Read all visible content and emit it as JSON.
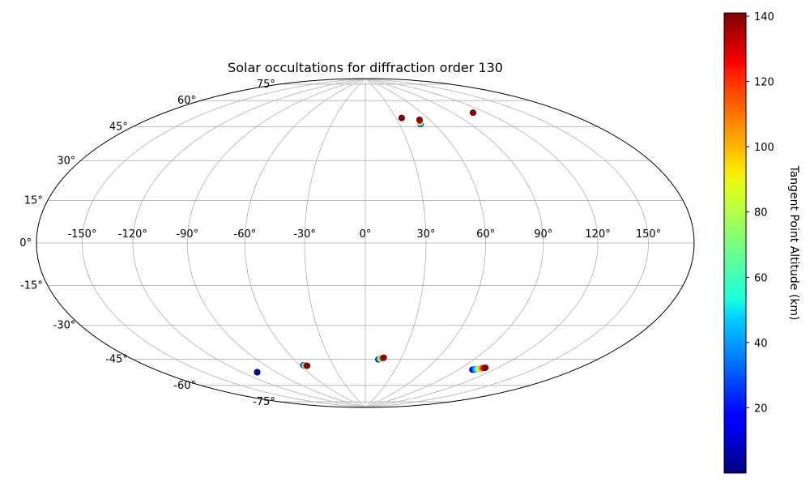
{
  "chart_data": {
    "type": "scatter",
    "projection": "hammer",
    "title": "Solar occultations for diffraction order 130",
    "longitude_ticks": [
      -150,
      -120,
      -90,
      -60,
      -30,
      0,
      30,
      60,
      90,
      120,
      150
    ],
    "longitude_tick_labels": [
      "-150°",
      "-120°",
      "-90°",
      "-60°",
      "-30°",
      "0°",
      "30°",
      "60°",
      "90°",
      "120°",
      "150°"
    ],
    "latitude_ticks": [
      -75,
      -60,
      -45,
      -30,
      -15,
      0,
      15,
      30,
      45,
      60,
      75
    ],
    "latitude_tick_labels": [
      "-75°",
      "-60°",
      "-45°",
      "-30°",
      "-15°",
      "0°",
      "15°",
      "30°",
      "45°",
      "60°",
      "75°"
    ],
    "grid": true,
    "colorbar": {
      "label": "Tangent Point Altitude (km)",
      "colormap": "jet",
      "range": [
        0,
        141
      ],
      "ticks": [
        20,
        40,
        60,
        80,
        100,
        120,
        140
      ],
      "tick_labels": [
        "20",
        "40",
        "60",
        "80",
        "100",
        "120",
        "140"
      ],
      "position": "right"
    },
    "occultations": [
      {
        "lon_start": 35.5,
        "lon_end": 35.5,
        "lat_start": 64.5,
        "lat_end": 64.5,
        "alt_min": 140,
        "alt_max": 141
      },
      {
        "lon_start": 48.5,
        "lon_end": 51.0,
        "lat_start": 60.5,
        "lat_end": 63.0,
        "alt_min": 10,
        "alt_max": 140
      },
      {
        "lon_start": 108.5,
        "lon_end": 108.5,
        "lat_start": 63.0,
        "lat_end": 63.0,
        "alt_min": 140,
        "alt_max": 141
      },
      {
        "lon_start": -107.0,
        "lon_end": -107.0,
        "lat_start": -62.5,
        "lat_end": -62.5,
        "alt_min": 1,
        "alt_max": 2
      },
      {
        "lon_start": -57.0,
        "lon_end": -54.0,
        "lat_start": -62.0,
        "lat_end": -62.5,
        "alt_min": 1,
        "alt_max": 141
      },
      {
        "lon_start": 11.0,
        "lon_end": 15.5,
        "lat_start": -60.0,
        "lat_end": -59.0,
        "alt_min": 1,
        "alt_max": 141
      },
      {
        "lon_start": 102.0,
        "lon_end": 110.0,
        "lat_start": -61.5,
        "lat_end": -59.5,
        "alt_min": 1,
        "alt_max": 141
      }
    ]
  }
}
